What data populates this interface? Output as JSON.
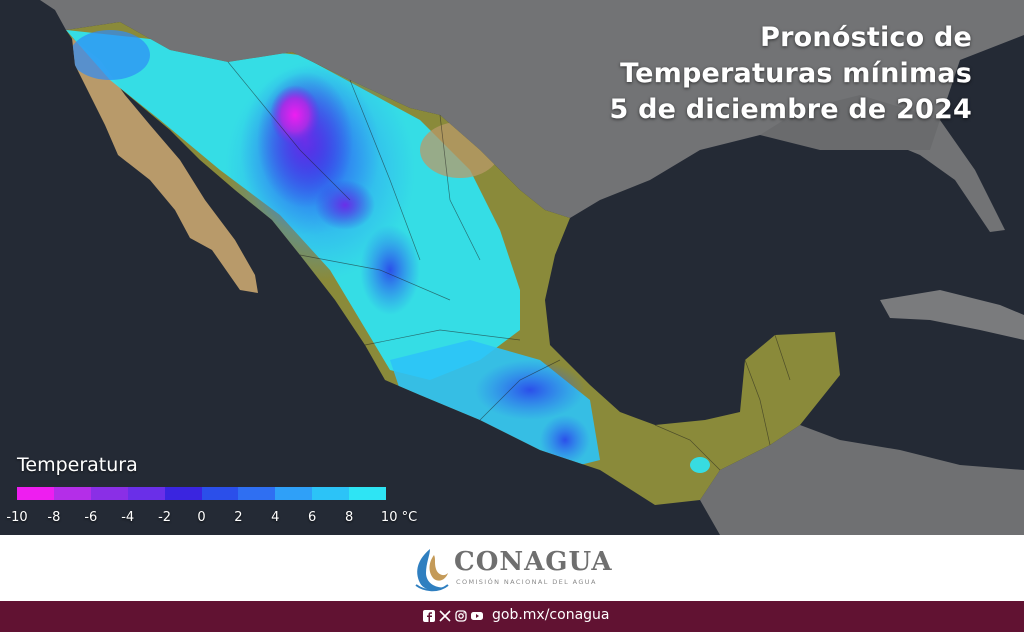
{
  "title": {
    "line1": "Pronóstico de",
    "line2": "Temperaturas mínimas",
    "line3": "5 de diciembre de 2024"
  },
  "legend": {
    "title": "Temperatura",
    "unit": "°C",
    "ticks": [
      "-10",
      "-8",
      "-6",
      "-4",
      "-2",
      "0",
      "2",
      "4",
      "6",
      "8",
      "10 °C"
    ],
    "colors": [
      "#ee1ef0",
      "#b42ee8",
      "#8a2fe6",
      "#6a2fe8",
      "#3a25e0",
      "#2b4fea",
      "#2f6ff2",
      "#2fa0f8",
      "#2cc3f7",
      "#2ee4f4"
    ]
  },
  "map_colors": {
    "ocean": "#242a35",
    "land_neighbor": "#7c7c7c",
    "land_warm": "#8a8a3a",
    "land_desert": "#b89a6a",
    "cold_cyan": "#2ee4f4",
    "cold_blue": "#2f6ff2",
    "cold_purple": "#7a2fe6",
    "cold_magenta": "#ee1ef0"
  },
  "footer": {
    "logo_name": "CONAGUA",
    "logo_subtitle": "COMISIÓN NACIONAL DEL AGUA",
    "url": "gob.mx/conagua",
    "social_icons": [
      "facebook-icon",
      "x-icon",
      "instagram-icon",
      "youtube-icon"
    ],
    "bar_color": "#611232"
  }
}
